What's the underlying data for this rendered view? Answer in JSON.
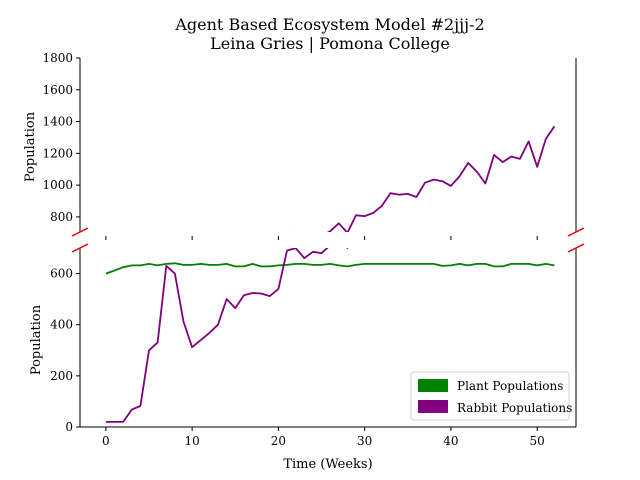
{
  "chart_data": {
    "type": "line",
    "title": "Agent Based Ecosystem Model #2jjj-2",
    "subtitle": "Leina Gries | Pomona College",
    "xlabel": "Time (Weeks)",
    "ylabel": "Population",
    "xlim": [
      -3,
      54.5
    ],
    "x_ticks": [
      0,
      10,
      20,
      30,
      40,
      50
    ],
    "axis_break": true,
    "upper_ylim": [
      705,
      1800
    ],
    "upper_y_ticks": [
      800,
      1000,
      1200,
      1400,
      1600,
      1800
    ],
    "lower_ylim": [
      0,
      700
    ],
    "lower_y_ticks": [
      0,
      200,
      400,
      600
    ],
    "grid": false,
    "legend_position": "bottom-right",
    "x": [
      0,
      1,
      2,
      3,
      4,
      5,
      6,
      7,
      8,
      9,
      10,
      11,
      12,
      13,
      14,
      15,
      16,
      17,
      18,
      19,
      20,
      21,
      22,
      23,
      24,
      25,
      26,
      27,
      28,
      29,
      30,
      31,
      32,
      33,
      34,
      35,
      36,
      37,
      38,
      39,
      40,
      41,
      42,
      43,
      44,
      45,
      46,
      47,
      48,
      49,
      50,
      51,
      52
    ],
    "series": [
      {
        "name": "Plant Populations",
        "color": "#008000",
        "values": [
          600,
          612,
          625,
          632,
          632,
          638,
          632,
          638,
          640,
          634,
          634,
          638,
          634,
          634,
          638,
          628,
          628,
          638,
          628,
          628,
          632,
          634,
          638,
          638,
          634,
          634,
          638,
          632,
          628,
          634,
          638,
          638,
          638,
          638,
          638,
          638,
          638,
          638,
          638,
          630,
          632,
          638,
          632,
          638,
          638,
          628,
          628,
          638,
          638,
          638,
          632,
          638,
          632
        ]
      },
      {
        "name": "Rabbit Populations",
        "color": "#800080",
        "values": [
          20,
          20,
          20,
          68,
          82,
          300,
          330,
          630,
          600,
          412,
          312,
          340,
          368,
          400,
          500,
          465,
          515,
          524,
          522,
          512,
          540,
          690,
          700,
          660,
          685,
          680,
          710,
          760,
          700,
          810,
          805,
          825,
          870,
          950,
          940,
          945,
          925,
          1015,
          1035,
          1025,
          995,
          1055,
          1140,
          1085,
          1010,
          1190,
          1145,
          1180,
          1165,
          1275,
          1115,
          1290,
          1370
        ]
      }
    ]
  }
}
